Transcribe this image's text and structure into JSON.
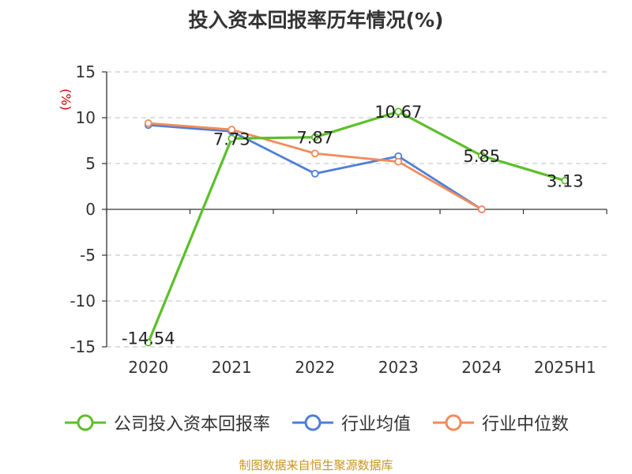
{
  "chart_data": {
    "type": "line",
    "title": "投入资本回报率历年情况(%)",
    "ylabel": "(%)",
    "categories": [
      "2020",
      "2021",
      "2022",
      "2023",
      "2024",
      "2025H1"
    ],
    "ylim": [
      -15,
      15
    ],
    "yticks": [
      "15",
      "10",
      "5",
      "0",
      "-5",
      "-10",
      "-15"
    ],
    "grid": true,
    "legend_position": "bottom",
    "series": [
      {
        "name": "公司投入资本回报率",
        "color": "#5cbf2a",
        "values": [
          -14.54,
          7.73,
          7.87,
          10.67,
          5.85,
          3.13
        ],
        "labels": [
          "-14.54",
          "7.73",
          "7.87",
          "10.67",
          "5.85",
          "3.13"
        ]
      },
      {
        "name": "行业均值",
        "color": "#4f7fd6",
        "values": [
          9.2,
          8.5,
          3.9,
          5.8,
          0,
          null
        ]
      },
      {
        "name": "行业中位数",
        "color": "#f28b5b",
        "values": [
          9.4,
          8.7,
          6.1,
          5.2,
          0,
          null
        ]
      }
    ]
  },
  "footer": {
    "source": "制图数据来自恒生聚源数据库"
  }
}
